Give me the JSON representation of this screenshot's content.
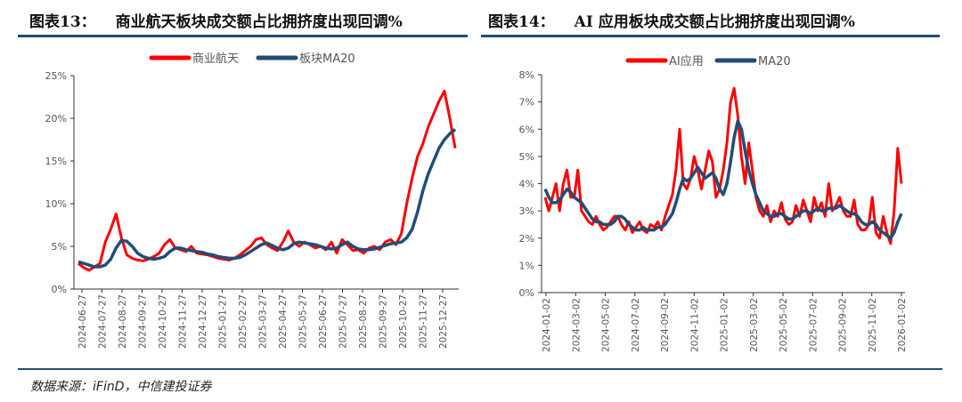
{
  "chart_data": [
    {
      "type": "line",
      "title_num": "图表13：",
      "title": "商业航天板块成交额占比拥挤度出现回调%",
      "yticks": [
        "0%",
        "5%",
        "10%",
        "15%",
        "20%",
        "25%"
      ],
      "ylim": [
        0,
        25
      ],
      "xticks": [
        "2024-06-27",
        "2024-07-27",
        "2024-08-27",
        "2024-09-27",
        "2024-10-27",
        "2024-11-27",
        "2024-12-27",
        "2025-01-27",
        "2025-02-27",
        "2025-03-27",
        "2025-04-27",
        "2025-05-27",
        "2025-06-27",
        "2025-07-27",
        "2025-08-27",
        "2025-09-27",
        "2025-10-27",
        "2025-11-27",
        "2025-12-27"
      ],
      "series": [
        {
          "name": "商业航天",
          "color": "#ff0000",
          "values": [
            3,
            2.5,
            2.2,
            2.6,
            3,
            5.5,
            7,
            8.8,
            6,
            4,
            3.6,
            3.4,
            3.3,
            3.5,
            3.8,
            4.2,
            5.2,
            5.8,
            4.8,
            4.6,
            4.4,
            5,
            4.2,
            4.1,
            4,
            3.8,
            3.6,
            3.5,
            3.4,
            3.6,
            4,
            4.5,
            5,
            5.8,
            6,
            5.2,
            4.8,
            4.5,
            5.5,
            6.8,
            5.5,
            5,
            5.5,
            5.2,
            4.8,
            5,
            4.6,
            5.5,
            4.2,
            5.8,
            5.2,
            4.5,
            4.6,
            4.2,
            4.8,
            5,
            4.6,
            5.5,
            5.8,
            5.2,
            6.5,
            10,
            13,
            15.5,
            17,
            19,
            20.5,
            22,
            23.2,
            20,
            16.5
          ]
        },
        {
          "name": "板块MA20",
          "color": "#1f4e79",
          "values": [
            3.2,
            3,
            2.8,
            2.6,
            2.6,
            2.8,
            3.5,
            4.8,
            5.7,
            5.6,
            5,
            4.2,
            3.8,
            3.6,
            3.5,
            3.6,
            3.8,
            4.4,
            4.8,
            4.8,
            4.6,
            4.5,
            4.4,
            4.3,
            4.1,
            4,
            3.8,
            3.7,
            3.6,
            3.6,
            3.7,
            4,
            4.4,
            4.8,
            5.2,
            5.4,
            5.1,
            4.8,
            4.6,
            4.8,
            5.3,
            5.5,
            5.4,
            5.3,
            5.2,
            5,
            4.8,
            4.7,
            4.8,
            5.2,
            5.5,
            5,
            4.7,
            4.6,
            4.6,
            4.7,
            4.9,
            5.1,
            5.3,
            5.4,
            5.5,
            6,
            7,
            9,
            11.5,
            13.5,
            15,
            16.5,
            17.5,
            18.2,
            18.7
          ]
        }
      ],
      "legend": "top"
    },
    {
      "type": "line",
      "title_num": "图表14：",
      "title": "AI 应用板块成交额占比拥挤度出现回调%",
      "yticks": [
        "0%",
        "1%",
        "2%",
        "3%",
        "4%",
        "5%",
        "6%",
        "7%",
        "8%"
      ],
      "ylim": [
        0,
        8
      ],
      "xticks": [
        "2024-01-02",
        "2024-03-02",
        "2024-05-02",
        "2024-07-02",
        "2024-09-02",
        "2024-11-02",
        "2025-01-02",
        "2025-03-02",
        "2025-05-02",
        "2025-07-02",
        "2025-09-02",
        "2025-11-02",
        "2026-01-02"
      ],
      "series": [
        {
          "name": "AI应用",
          "color": "#ff0000",
          "values": [
            3.5,
            3,
            3.5,
            4,
            3,
            4,
            4.5,
            3.5,
            3.5,
            4.5,
            3,
            2.8,
            2.6,
            2.5,
            2.8,
            2.5,
            2.3,
            2.4,
            2.6,
            2.8,
            2.8,
            2.5,
            2.3,
            2.6,
            2.2,
            2.4,
            2.6,
            2.3,
            2.2,
            2.5,
            2.4,
            2.6,
            2.3,
            2.8,
            3.2,
            3.6,
            4.5,
            6,
            4,
            3.8,
            4.2,
            5,
            4.5,
            3.8,
            4.5,
            5.2,
            4.8,
            3.5,
            3.8,
            4.5,
            5.5,
            7,
            7.5,
            6.5,
            5,
            4,
            5.5,
            4.5,
            3.5,
            3,
            2.8,
            3.2,
            2.6,
            3,
            2.8,
            3.3,
            2.7,
            2.5,
            2.6,
            3.2,
            2.8,
            3.4,
            3,
            2.6,
            3.5,
            3,
            3.3,
            2.8,
            4,
            3,
            3.2,
            3.5,
            3,
            2.8,
            2.8,
            3.4,
            2.5,
            2.3,
            2.3,
            2.5,
            3.5,
            2.2,
            2,
            2.8,
            2.2,
            1.8,
            3,
            5.3,
            4
          ]
        },
        {
          "name": "MA20",
          "color": "#1f4e79",
          "values": [
            3.8,
            3.5,
            3.3,
            3.3,
            3.4,
            3.6,
            3.8,
            3.7,
            3.5,
            3.4,
            3.3,
            3.1,
            2.9,
            2.7,
            2.6,
            2.6,
            2.5,
            2.5,
            2.5,
            2.6,
            2.8,
            2.8,
            2.7,
            2.5,
            2.4,
            2.3,
            2.3,
            2.4,
            2.3,
            2.3,
            2.3,
            2.4,
            2.4,
            2.5,
            2.7,
            2.9,
            3.3,
            3.8,
            4.2,
            4.1,
            4.2,
            4.4,
            4.6,
            4.4,
            4.2,
            4.3,
            4.4,
            4.2,
            3.8,
            3.6,
            4,
            4.8,
            5.7,
            6.3,
            6,
            5.2,
            4.5,
            4,
            3.6,
            3.3,
            3,
            2.9,
            2.8,
            2.8,
            2.9,
            2.9,
            2.8,
            2.7,
            2.7,
            2.8,
            2.9,
            3,
            3,
            2.9,
            3,
            3.1,
            3,
            3,
            3.1,
            3.1,
            3.1,
            3.2,
            3.1,
            3,
            2.9,
            2.9,
            2.8,
            2.6,
            2.5,
            2.5,
            2.6,
            2.5,
            2.3,
            2.2,
            2.1,
            2,
            2.2,
            2.6,
            2.9
          ]
        }
      ],
      "legend": "top"
    }
  ],
  "source": "数据来源：iFinD，中信建投证券"
}
